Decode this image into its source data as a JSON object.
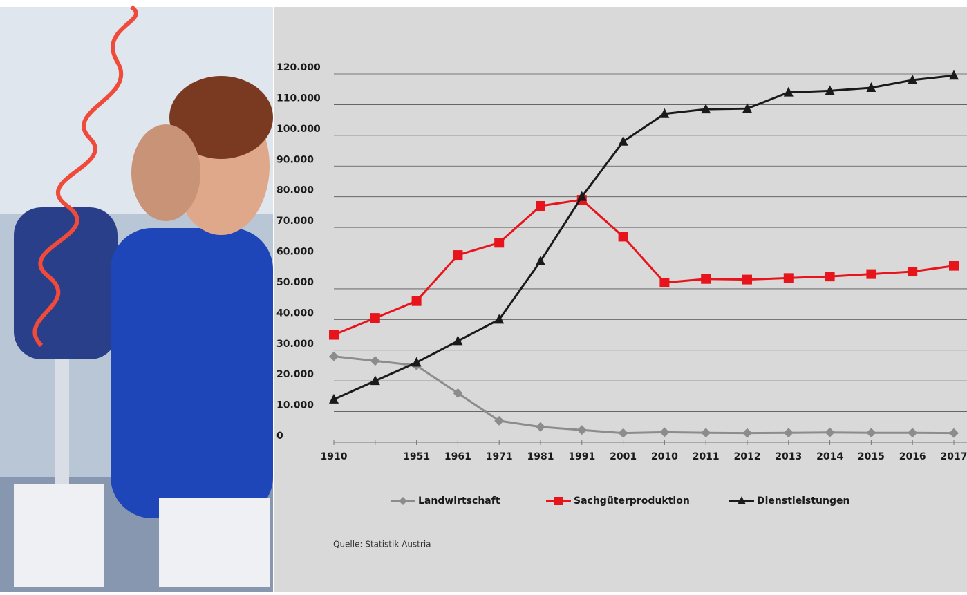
{
  "chart_data": {
    "type": "line",
    "categories": [
      "1910",
      null,
      "1951",
      "1961",
      "1971",
      "1981",
      "1991",
      "2001",
      "2010",
      "2011",
      "2012",
      "2013",
      "2014",
      "2015",
      "2016",
      "2017"
    ],
    "series": [
      {
        "name": "Landwirtschaft",
        "color": "#8c8c8c",
        "marker": "diamond",
        "values": [
          28000,
          26500,
          25000,
          16000,
          7000,
          5000,
          4000,
          3000,
          3300,
          3100,
          3000,
          3100,
          3200,
          3100,
          3100,
          3000
        ]
      },
      {
        "name": "Sachgüterproduktion",
        "color": "#e8141b",
        "marker": "square",
        "values": [
          35000,
          40500,
          46000,
          61000,
          65000,
          77000,
          79000,
          67000,
          52000,
          53200,
          53000,
          53500,
          54000,
          54800,
          55600,
          57500
        ]
      },
      {
        "name": "Dienstleistungen",
        "color": "#1a1a1a",
        "marker": "triangle",
        "values": [
          14000,
          20000,
          26000,
          33000,
          40000,
          59000,
          80000,
          98000,
          107000,
          108500,
          108700,
          114000,
          114500,
          115500,
          118000,
          119500
        ]
      }
    ],
    "ylim": [
      0,
      120000
    ],
    "yticks": [
      0,
      {
        "value": 10000,
        "label": "10.000"
      },
      {
        "value": 20000,
        "label": "20.000"
      },
      {
        "value": 30000,
        "label": "30.000"
      },
      {
        "value": 40000,
        "label": "40.000"
      },
      {
        "value": 50000,
        "label": "50.000"
      },
      {
        "value": 60000,
        "label": "60.000"
      },
      {
        "value": 70000,
        "label": "70.000"
      },
      {
        "value": 80000,
        "label": "80.000"
      },
      {
        "value": 90000,
        "label": "90.000"
      },
      {
        "value": 100000,
        "label": "100.000"
      },
      {
        "value": 110000,
        "label": "110.000"
      },
      {
        "value": 120000,
        "label": "120.000"
      }
    ],
    "grid": true,
    "legend": "bottom",
    "source": "Quelle: Statistik Austria"
  }
}
